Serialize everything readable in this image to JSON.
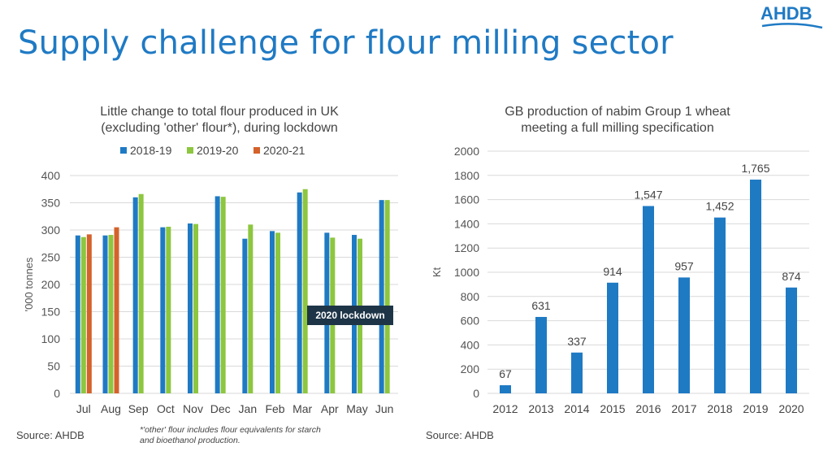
{
  "page": {
    "title": "Supply challenge for flour milling sector",
    "logo": "AHDB",
    "left_source": "Source: AHDB",
    "right_source": "Source: AHDB",
    "footnote_line1": "*'other' flour includes flour equivalents for starch",
    "footnote_line2": "and bioethanol production."
  },
  "chart_data": [
    {
      "type": "bar",
      "title": "Little change to total flour produced in UK",
      "subtitle": "(excluding 'other' flour*), during lockdown",
      "ylabel": "'000 tonnes",
      "ylim": [
        0,
        400
      ],
      "yticks": [
        0,
        50,
        100,
        150,
        200,
        250,
        300,
        350,
        400
      ],
      "grid": true,
      "legend": "top",
      "categories": [
        "Jul",
        "Aug",
        "Sep",
        "Oct",
        "Nov",
        "Dec",
        "Jan",
        "Feb",
        "Mar",
        "Apr",
        "May",
        "Jun"
      ],
      "series": [
        {
          "name": "2018-19",
          "color": "#1f7ac4",
          "values": [
            290,
            290,
            360,
            305,
            312,
            362,
            284,
            298,
            369,
            295,
            291,
            355
          ]
        },
        {
          "name": "2019-20",
          "color": "#8dc63f",
          "values": [
            287,
            291,
            366,
            306,
            311,
            361,
            310,
            295,
            375,
            286,
            284,
            355
          ]
        },
        {
          "name": "2020-21",
          "color": "#d4622b",
          "values": [
            292,
            305,
            null,
            null,
            null,
            null,
            null,
            null,
            null,
            null,
            null,
            null
          ]
        }
      ],
      "annotation": "2020 lockdown"
    },
    {
      "type": "bar",
      "title": "GB production of nabim Group 1 wheat",
      "subtitle": "meeting a full milling specification",
      "ylabel": "Kt",
      "ylim": [
        0,
        2000
      ],
      "yticks": [
        0,
        200,
        400,
        600,
        800,
        1000,
        1200,
        1400,
        1600,
        1800,
        2000
      ],
      "grid": true,
      "color": "#1f7ac4",
      "categories": [
        "2012",
        "2013",
        "2014",
        "2015",
        "2016",
        "2017",
        "2018",
        "2019",
        "2020"
      ],
      "values": [
        67,
        631,
        337,
        914,
        1547,
        957,
        1452,
        1765,
        874
      ],
      "data_labels": [
        "67",
        "631",
        "337",
        "914",
        "1,547",
        "957",
        "1,452",
        "1,765",
        "874"
      ]
    }
  ]
}
